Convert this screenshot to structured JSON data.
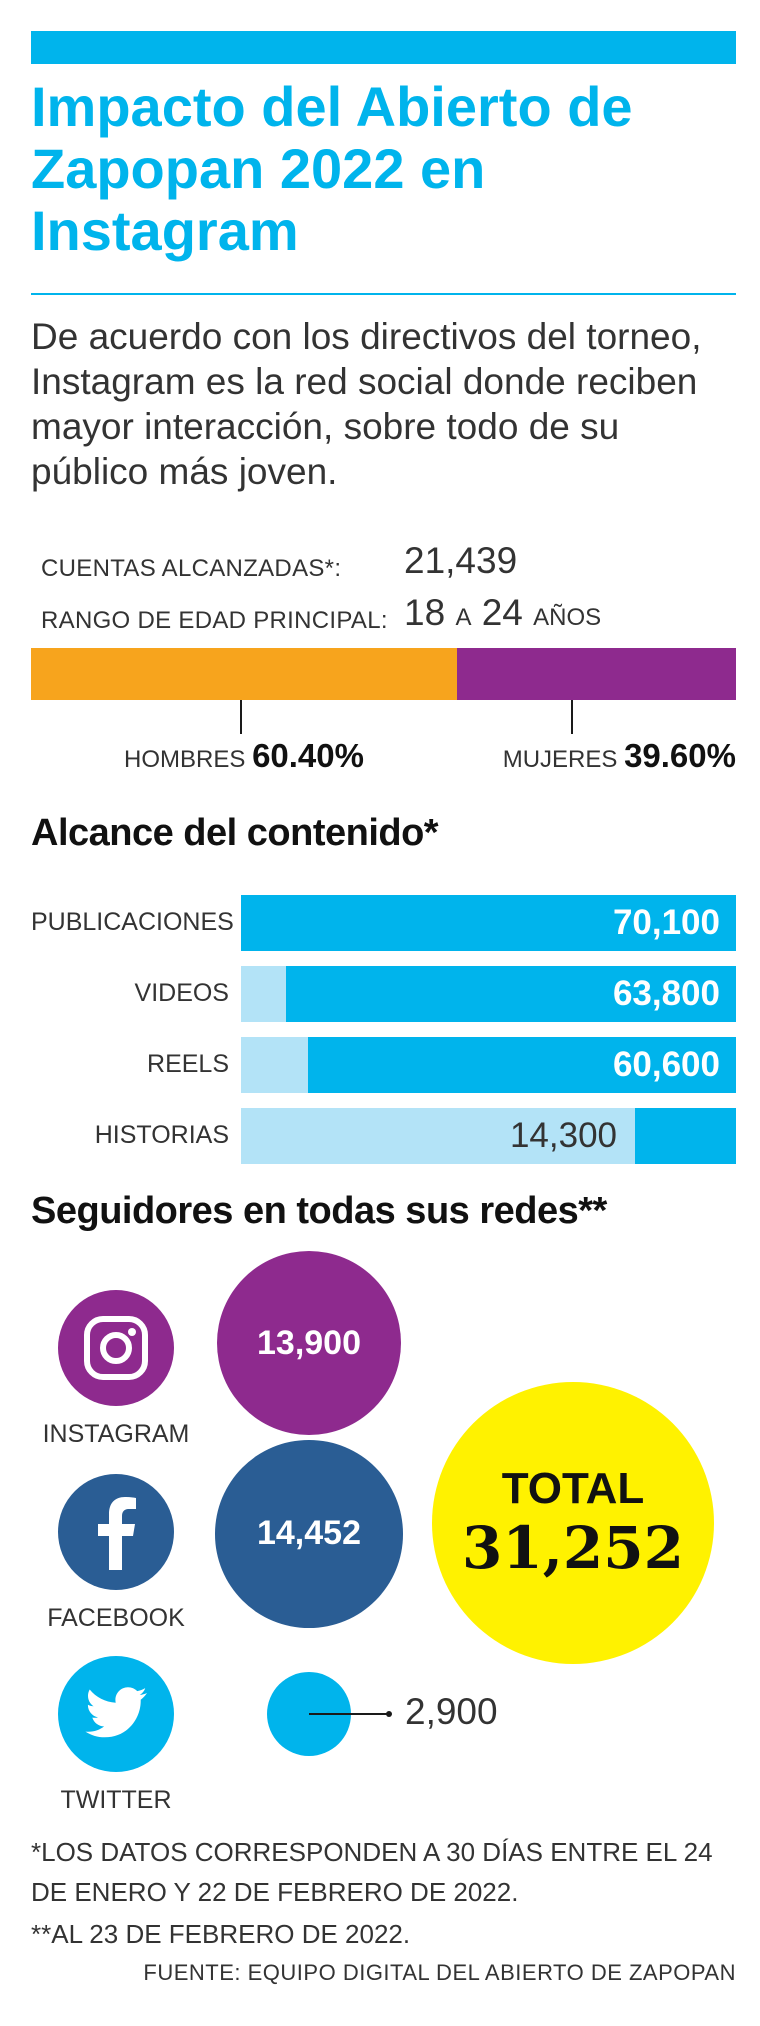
{
  "title": "Impacto del Abierto de Zapopan 2022 en Instagram",
  "intro": "De acuerdo con los directivos del torneo, Instagram es la red social donde reciben mayor interacción, sobre todo de su público más joven.",
  "stats": {
    "accounts_label": "CUENTAS ALCANZADAS*:",
    "accounts_value": "21,439",
    "age_label": "RANGO DE EDAD PRINCIPAL:",
    "age_from": "18",
    "age_sep": "A",
    "age_to": "24",
    "age_unit": "AÑOS"
  },
  "colors": {
    "cyan": "#00b4ec",
    "light_cyan": "#b3e3f7",
    "orange": "#f7a41d",
    "purple": "#8e2a8e",
    "facebook_blue": "#2a5d94",
    "yellow": "#fff200"
  },
  "chart_data": [
    {
      "type": "bar",
      "orientation": "horizontal-stacked",
      "categories": [
        "HOMBRES",
        "MUJERES"
      ],
      "values": [
        60.4,
        39.6
      ],
      "value_labels": [
        "60.40%",
        "39.60%"
      ],
      "unit": "%",
      "colors": [
        "#f7a41d",
        "#8e2a8e"
      ]
    },
    {
      "type": "bar",
      "orientation": "horizontal",
      "title": "Alcance del contenido*",
      "categories": [
        "PUBLICACIONES",
        "VIDEOS",
        "REELS",
        "HISTORIAS"
      ],
      "values": [
        70100,
        63800,
        60600,
        14300
      ],
      "value_labels": [
        "70,100",
        "63,800",
        "60,600",
        "14,300"
      ],
      "xlim": [
        0,
        70100
      ]
    },
    {
      "type": "bubble",
      "title": "Seguidores en todas sus redes**",
      "categories": [
        "INSTAGRAM",
        "FACEBOOK",
        "TWITTER"
      ],
      "values": [
        13900,
        14452,
        2900
      ],
      "value_labels": [
        "13,900",
        "14,452",
        "2,900"
      ],
      "total_label": "TOTAL",
      "total_value": "31,252",
      "icons": [
        "instagram-icon",
        "facebook-icon",
        "twitter-icon"
      ]
    }
  ],
  "notes": {
    "note1": "*LOS DATOS CORRESPONDEN A 30 DÍAS ENTRE EL 24 DE ENERO Y 22 DE FEBRERO DE 2022.",
    "note2": "**AL 23 DE FEBRERO DE 2022.",
    "source": "FUENTE: EQUIPO DIGITAL DEL ABIERTO DE ZAPOPAN"
  }
}
